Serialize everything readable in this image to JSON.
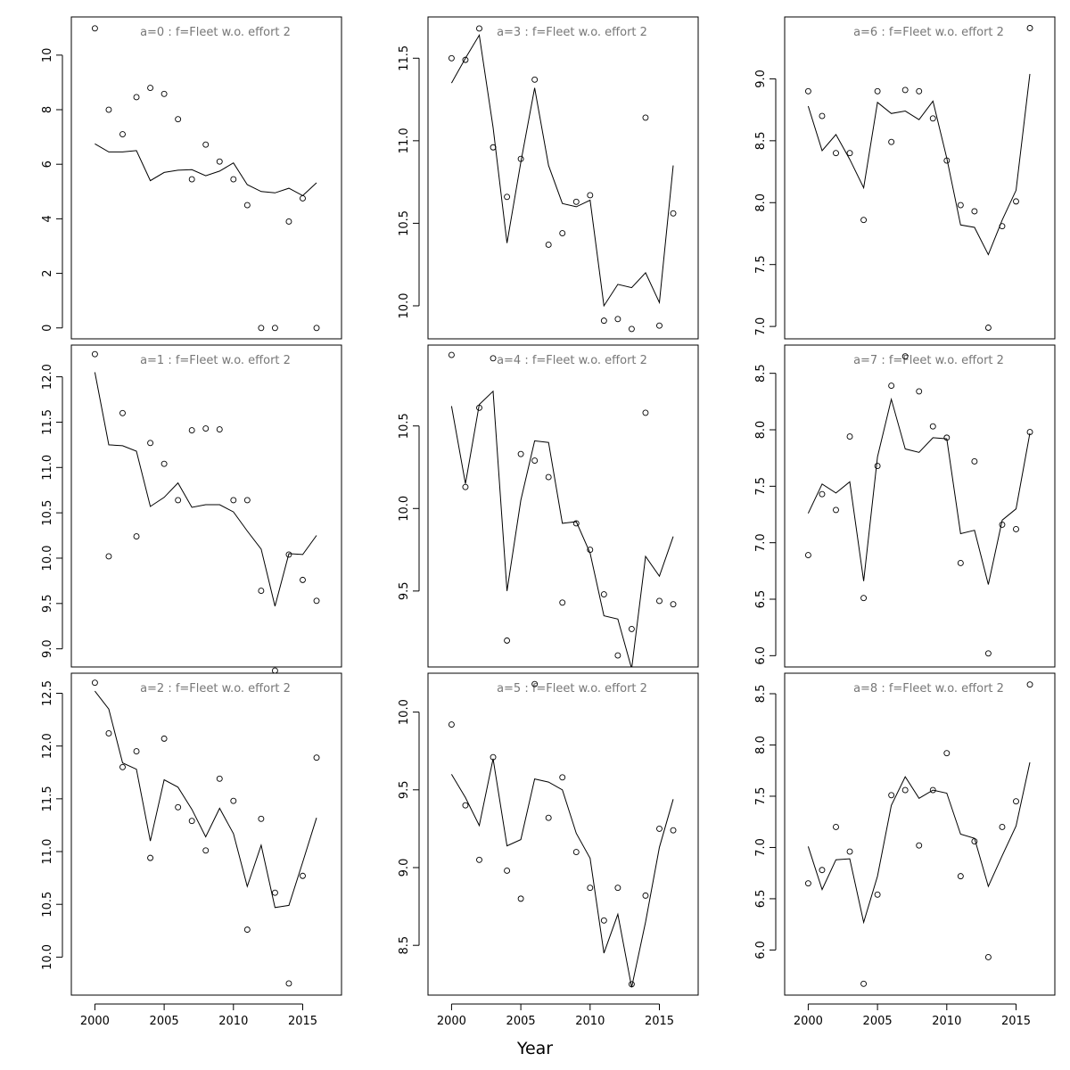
{
  "figure": {
    "xlabel": "Year"
  },
  "chart_data": [
    {
      "type": "line",
      "title": "a=0  :  f=Fleet w.o. effort 2",
      "x": [
        2000,
        2001,
        2002,
        2003,
        2004,
        2005,
        2006,
        2007,
        2008,
        2009,
        2010,
        2011,
        2012,
        2013,
        2014,
        2015,
        2016
      ],
      "xticks": [
        2000,
        2005,
        2010,
        2015
      ],
      "xlim": [
        1998.3,
        2017.8
      ],
      "ylim": [
        -0.4,
        11.4
      ],
      "yticks": [
        0,
        2,
        4,
        6,
        8,
        10
      ],
      "ytick_labels": [
        "0",
        "2",
        "4",
        "6",
        "8",
        "10"
      ],
      "series": [
        {
          "kind": "points",
          "values": [
            10.98,
            8.0,
            7.1,
            8.46,
            8.8,
            8.58,
            7.65,
            5.45,
            6.72,
            6.1,
            5.45,
            4.5,
            0.0,
            0.0,
            3.9,
            4.75,
            0.0
          ]
        },
        {
          "kind": "line",
          "values": [
            6.75,
            6.45,
            6.45,
            6.5,
            5.4,
            5.7,
            5.78,
            5.8,
            5.58,
            5.75,
            6.05,
            5.25,
            5.0,
            4.95,
            5.12,
            4.85,
            5.32
          ]
        }
      ]
    },
    {
      "type": "line",
      "title": "a=1  :  f=Fleet w.o. effort 2",
      "x": [
        2000,
        2001,
        2002,
        2003,
        2004,
        2005,
        2006,
        2007,
        2008,
        2009,
        2010,
        2011,
        2012,
        2013,
        2014,
        2015,
        2016
      ],
      "xticks": [
        2000,
        2005,
        2010,
        2015
      ],
      "xlim": [
        1998.3,
        2017.8
      ],
      "ylim": [
        8.8,
        12.35
      ],
      "yticks": [
        9.0,
        9.5,
        10.0,
        10.5,
        11.0,
        11.5,
        12.0
      ],
      "ytick_labels": [
        "9.0",
        "9.5",
        "10.0",
        "10.5",
        "11.0",
        "11.5",
        "12.0"
      ],
      "series": [
        {
          "kind": "points",
          "values": [
            12.25,
            10.02,
            11.6,
            10.24,
            11.27,
            11.04,
            10.64,
            11.41,
            11.43,
            11.42,
            10.64,
            10.64,
            9.64,
            8.76,
            10.04,
            9.76,
            9.53
          ]
        },
        {
          "kind": "line",
          "values": [
            12.05,
            11.25,
            11.24,
            11.18,
            10.57,
            10.67,
            10.83,
            10.56,
            10.59,
            10.59,
            10.51,
            10.3,
            10.1,
            9.47,
            10.05,
            10.04,
            10.25
          ]
        }
      ]
    },
    {
      "type": "line",
      "title": "a=2  :  f=Fleet w.o. effort 2",
      "x": [
        2000,
        2001,
        2002,
        2003,
        2004,
        2005,
        2006,
        2007,
        2008,
        2009,
        2010,
        2011,
        2012,
        2013,
        2014,
        2015,
        2016
      ],
      "xticks": [
        2000,
        2005,
        2010,
        2015
      ],
      "xlim": [
        1998.3,
        2017.8
      ],
      "ylim": [
        9.64,
        12.69
      ],
      "yticks": [
        10.0,
        10.5,
        11.0,
        11.5,
        12.0,
        12.5
      ],
      "ytick_labels": [
        "10.0",
        "10.5",
        "11.0",
        "11.5",
        "12.0",
        "12.5"
      ],
      "series": [
        {
          "kind": "points",
          "values": [
            12.6,
            12.12,
            11.8,
            11.95,
            10.94,
            12.07,
            11.42,
            11.29,
            11.01,
            11.69,
            11.48,
            10.26,
            11.31,
            10.61,
            9.75,
            10.77,
            11.89
          ]
        },
        {
          "kind": "line",
          "values": [
            12.52,
            12.35,
            11.84,
            11.78,
            11.1,
            11.68,
            11.61,
            11.4,
            11.14,
            11.41,
            11.17,
            10.67,
            11.06,
            10.47,
            10.49,
            10.9,
            11.32
          ]
        }
      ]
    },
    {
      "type": "line",
      "title": "a=3  :  f=Fleet w.o. effort 2",
      "x": [
        2000,
        2001,
        2002,
        2003,
        2004,
        2005,
        2006,
        2007,
        2008,
        2009,
        2010,
        2011,
        2012,
        2013,
        2014,
        2015,
        2016
      ],
      "xticks": [
        2000,
        2005,
        2010,
        2015
      ],
      "xlim": [
        1998.3,
        2017.8
      ],
      "ylim": [
        9.8,
        11.75
      ],
      "yticks": [
        10.0,
        10.5,
        11.0,
        11.5
      ],
      "ytick_labels": [
        "10.0",
        "10.5",
        "11.0",
        "11.5"
      ],
      "series": [
        {
          "kind": "points",
          "values": [
            11.5,
            11.49,
            11.68,
            10.96,
            10.66,
            10.89,
            11.37,
            10.37,
            10.44,
            10.63,
            10.67,
            9.91,
            9.92,
            9.86,
            11.14,
            9.88,
            10.56
          ]
        },
        {
          "kind": "line",
          "values": [
            11.35,
            11.5,
            11.64,
            11.08,
            10.38,
            10.87,
            11.32,
            10.85,
            10.62,
            10.6,
            10.64,
            10.0,
            10.13,
            10.11,
            10.2,
            10.02,
            10.85
          ]
        }
      ]
    },
    {
      "type": "line",
      "title": "a=4  :  f=Fleet w.o. effort 2",
      "x": [
        2000,
        2001,
        2002,
        2003,
        2004,
        2005,
        2006,
        2007,
        2008,
        2009,
        2010,
        2011,
        2012,
        2013,
        2014,
        2015,
        2016
      ],
      "xticks": [
        2000,
        2005,
        2010,
        2015
      ],
      "xlim": [
        1998.3,
        2017.8
      ],
      "ylim": [
        9.04,
        10.99
      ],
      "yticks": [
        9.5,
        10.0,
        10.5
      ],
      "ytick_labels": [
        "9.5",
        "10.0",
        "10.5"
      ],
      "series": [
        {
          "kind": "points",
          "values": [
            10.93,
            10.13,
            10.61,
            10.91,
            9.2,
            10.33,
            10.29,
            10.19,
            9.43,
            9.91,
            9.75,
            9.48,
            9.11,
            9.27,
            10.58,
            9.44,
            9.42
          ]
        },
        {
          "kind": "line",
          "values": [
            10.62,
            10.15,
            10.63,
            10.71,
            9.5,
            10.05,
            10.41,
            10.4,
            9.91,
            9.92,
            9.73,
            9.35,
            9.33,
            9.03,
            9.71,
            9.59,
            9.83
          ]
        }
      ]
    },
    {
      "type": "line",
      "title": "a=5  :  f=Fleet w.o. effort 2",
      "x": [
        2000,
        2001,
        2002,
        2003,
        2004,
        2005,
        2006,
        2007,
        2008,
        2009,
        2010,
        2011,
        2012,
        2013,
        2014,
        2015,
        2016
      ],
      "xticks": [
        2000,
        2005,
        2010,
        2015
      ],
      "xlim": [
        1998.3,
        2017.8
      ],
      "ylim": [
        8.18,
        10.25
      ],
      "yticks": [
        8.5,
        9.0,
        9.5,
        10.0
      ],
      "ytick_labels": [
        "8.5",
        "9.0",
        "9.5",
        "10.0"
      ],
      "series": [
        {
          "kind": "points",
          "values": [
            9.92,
            9.4,
            9.05,
            9.71,
            8.98,
            8.8,
            10.18,
            9.32,
            9.58,
            9.1,
            8.87,
            8.66,
            8.87,
            8.25,
            8.82,
            9.25,
            9.24
          ]
        },
        {
          "kind": "line",
          "values": [
            9.6,
            9.45,
            9.27,
            9.7,
            9.14,
            9.18,
            9.57,
            9.55,
            9.5,
            9.22,
            9.06,
            8.45,
            8.7,
            8.23,
            8.65,
            9.13,
            9.44
          ]
        }
      ]
    },
    {
      "type": "line",
      "title": "a=6  :  f=Fleet w.o. effort 2",
      "x": [
        2000,
        2001,
        2002,
        2003,
        2004,
        2005,
        2006,
        2007,
        2008,
        2009,
        2010,
        2011,
        2012,
        2013,
        2014,
        2015,
        2016
      ],
      "xticks": [
        2000,
        2005,
        2010,
        2015
      ],
      "xlim": [
        1998.3,
        2017.8
      ],
      "ylim": [
        6.9,
        9.5
      ],
      "yticks": [
        7.0,
        7.5,
        8.0,
        8.5,
        9.0
      ],
      "ytick_labels": [
        "7.0",
        "7.5",
        "8.0",
        "8.5",
        "9.0"
      ],
      "series": [
        {
          "kind": "points",
          "values": [
            8.9,
            8.7,
            8.4,
            8.4,
            7.86,
            8.9,
            8.49,
            8.91,
            8.9,
            8.68,
            8.34,
            7.98,
            7.93,
            6.99,
            7.81,
            8.01,
            9.41
          ]
        },
        {
          "kind": "line",
          "values": [
            8.78,
            8.42,
            8.55,
            8.35,
            8.12,
            8.81,
            8.72,
            8.74,
            8.67,
            8.82,
            8.36,
            7.82,
            7.8,
            7.58,
            7.86,
            8.1,
            9.04
          ]
        }
      ]
    },
    {
      "type": "line",
      "title": "a=7  :  f=Fleet w.o. effort 2",
      "x": [
        2000,
        2001,
        2002,
        2003,
        2004,
        2005,
        2006,
        2007,
        2008,
        2009,
        2010,
        2011,
        2012,
        2013,
        2014,
        2015,
        2016
      ],
      "xticks": [
        2000,
        2005,
        2010,
        2015
      ],
      "xlim": [
        1998.3,
        2017.8
      ],
      "ylim": [
        5.9,
        8.75
      ],
      "yticks": [
        6.0,
        6.5,
        7.0,
        7.5,
        8.0,
        8.5
      ],
      "ytick_labels": [
        "6.0",
        "6.5",
        "7.0",
        "7.5",
        "8.0",
        "8.5"
      ],
      "series": [
        {
          "kind": "points",
          "values": [
            6.89,
            7.43,
            7.29,
            7.94,
            6.51,
            7.68,
            8.39,
            8.65,
            8.34,
            8.03,
            7.93,
            6.82,
            7.72,
            6.02,
            7.16,
            7.12,
            7.98
          ]
        },
        {
          "kind": "line",
          "values": [
            7.26,
            7.52,
            7.44,
            7.54,
            6.66,
            7.76,
            8.27,
            7.83,
            7.8,
            7.93,
            7.92,
            7.08,
            7.11,
            6.63,
            7.2,
            7.3,
            7.97
          ]
        }
      ]
    },
    {
      "type": "line",
      "title": "a=8  :  f=Fleet w.o. effort 2",
      "x": [
        2000,
        2001,
        2002,
        2003,
        2004,
        2005,
        2006,
        2007,
        2008,
        2009,
        2010,
        2011,
        2012,
        2013,
        2014,
        2015,
        2016
      ],
      "xticks": [
        2000,
        2005,
        2010,
        2015
      ],
      "xlim": [
        1998.3,
        2017.8
      ],
      "ylim": [
        5.56,
        8.7
      ],
      "yticks": [
        6.0,
        6.5,
        7.0,
        7.5,
        8.0,
        8.5
      ],
      "ytick_labels": [
        "6.0",
        "6.5",
        "7.0",
        "7.5",
        "8.0",
        "8.5"
      ],
      "series": [
        {
          "kind": "points",
          "values": [
            6.65,
            6.78,
            7.2,
            6.96,
            5.67,
            6.54,
            7.51,
            7.56,
            7.02,
            7.56,
            7.92,
            6.72,
            7.06,
            5.93,
            7.2,
            7.45,
            8.59
          ]
        },
        {
          "kind": "line",
          "values": [
            7.01,
            6.59,
            6.88,
            6.89,
            6.27,
            6.72,
            7.41,
            7.69,
            7.48,
            7.56,
            7.53,
            7.13,
            7.09,
            6.62,
            6.92,
            7.21,
            7.83
          ]
        }
      ]
    }
  ]
}
